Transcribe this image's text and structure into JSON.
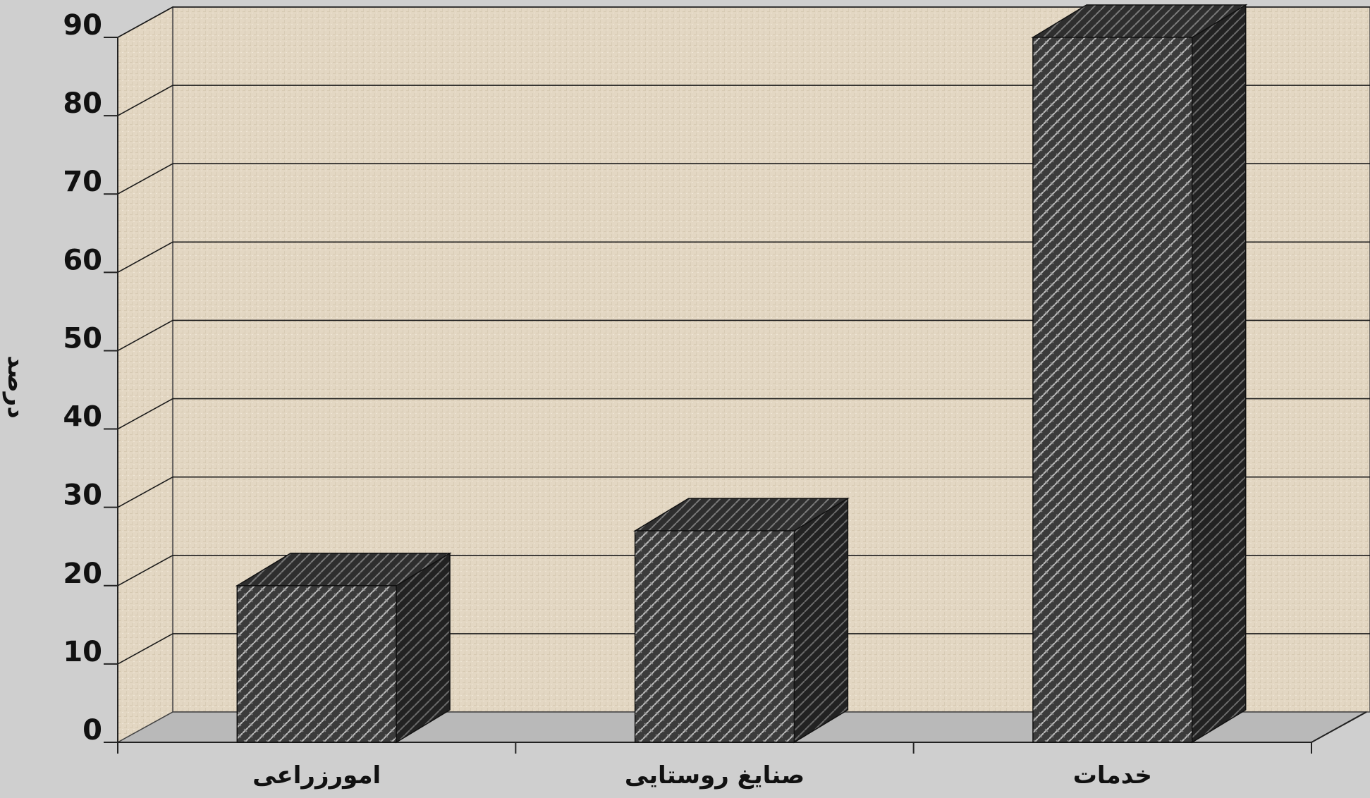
{
  "chart_data": {
    "type": "bar",
    "style": "3d-column",
    "title": "",
    "xlabel": "",
    "ylabel": "درصد",
    "categories": [
      "امورزراعی",
      "صنایغ روستایی",
      "خدمات"
    ],
    "values": [
      20,
      27,
      90
    ],
    "ylim": [
      0,
      90
    ],
    "yticks": [
      0,
      10,
      20,
      30,
      40,
      50,
      60,
      70,
      80,
      90
    ],
    "grid": true,
    "legend": "none"
  },
  "colors": {
    "page_background": "#cfcfcf",
    "wall_background": "#e3d7c3",
    "floor": "#b9b9b9",
    "bar_front": "#3b3b3b",
    "bar_pattern": "#b8b8b8",
    "bar_side": "#222222",
    "bar_top": "#2e2e2e",
    "gridline": "#1a1a1a"
  }
}
